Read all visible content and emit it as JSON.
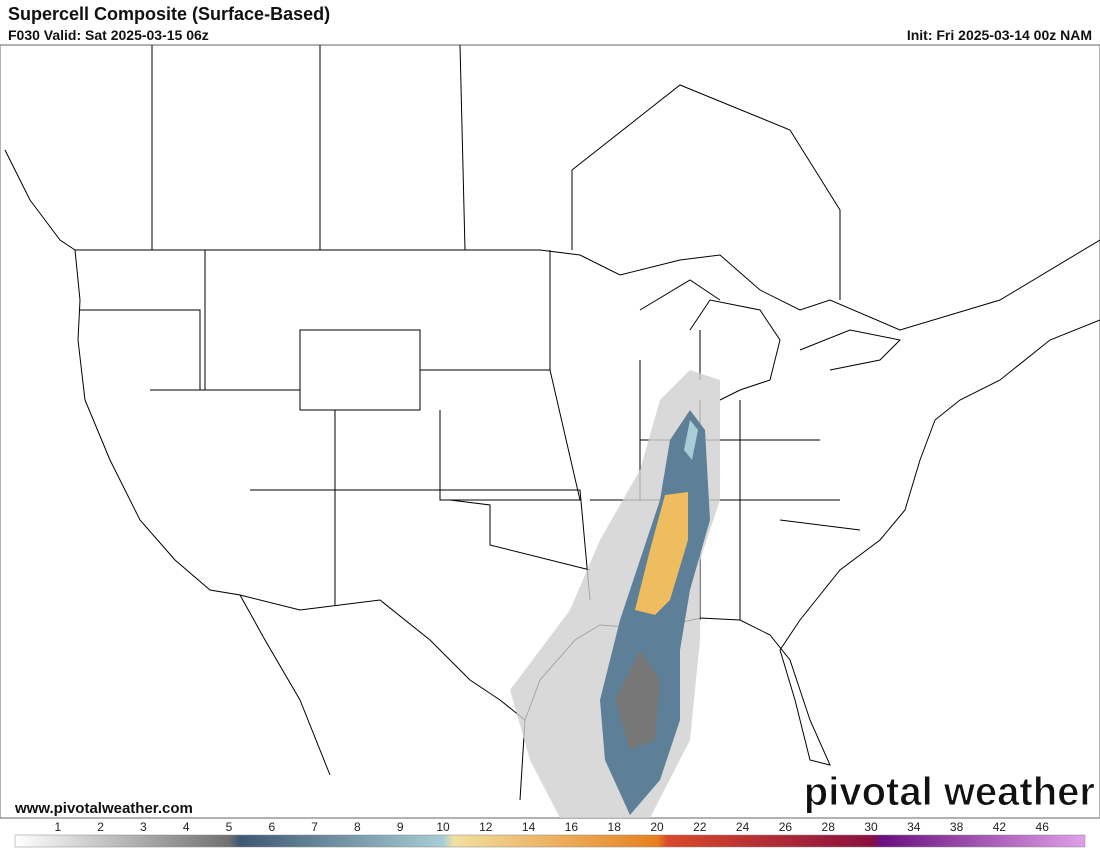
{
  "header": {
    "title": "Supercell Composite (Surface-Based)",
    "valid": "F030 Valid: Sat 2025-03-15 06z",
    "init": "Init: Fri 2025-03-14 00z NAM"
  },
  "footer": {
    "website": "www.pivotalweather.com",
    "watermark": "pivotal weather"
  },
  "colorbar": {
    "ticks": [
      1,
      2,
      3,
      4,
      5,
      6,
      7,
      8,
      9,
      10,
      12,
      14,
      16,
      18,
      20,
      22,
      24,
      26,
      28,
      30,
      34,
      38,
      42,
      46
    ]
  }
}
